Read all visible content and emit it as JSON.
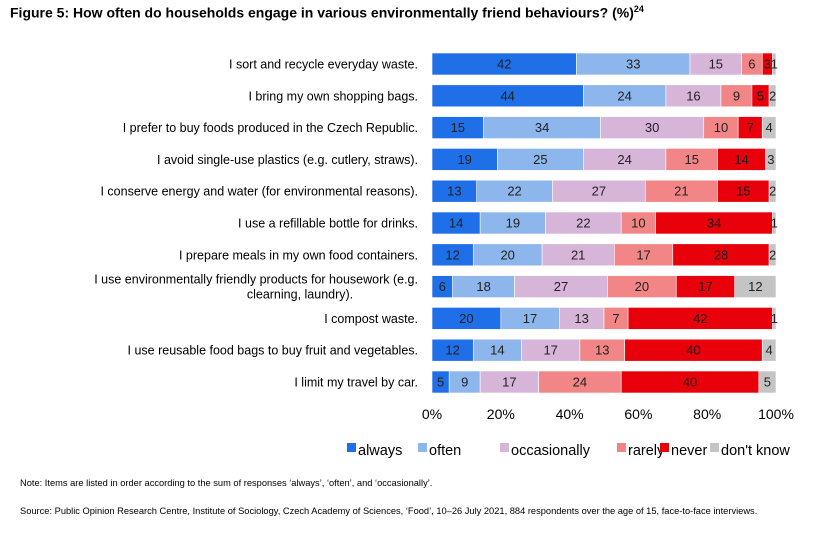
{
  "figure": {
    "title": "Figure 5: How often do households engage in various environmentally friend behaviours? (%)",
    "title_sup": "24",
    "note": "Note: Items are listed in order according to the sum of responses ‘always’, ‘often’, and ‘occasionally’.",
    "source": "Source: Public Opinion Research Centre, Institute of Sociology, Czech Academy of Sciences, ‘Food’, 10–26 July 2021, 884 respondents over the age of 15, face-to-face interviews."
  },
  "chart_data": {
    "type": "bar",
    "orientation": "horizontal",
    "stacked": "percent",
    "categories": [
      "I sort and recycle everyday waste.",
      "I bring my own shopping bags.",
      "I prefer to buy foods produced in the Czech Republic.",
      "I avoid single-use plastics (e.g. cutlery, straws).",
      "I conserve energy and water (for environmental reasons).",
      "I use a refillable bottle for drinks.",
      "I prepare meals in my own food containers.",
      "I use environmentally friendly products for housework (e.g. clearning, laundry).",
      "I compost waste.",
      "I use reusable food bags to buy fruit and vegetables.",
      "I limit my travel by car."
    ],
    "series": [
      {
        "name": "always",
        "color": "#1f6fe8",
        "values": [
          42,
          44,
          15,
          19,
          13,
          14,
          12,
          6,
          20,
          12,
          5
        ]
      },
      {
        "name": "often",
        "color": "#8db6ec",
        "values": [
          33,
          24,
          34,
          25,
          22,
          19,
          20,
          18,
          17,
          14,
          9
        ]
      },
      {
        "name": "occasionally",
        "color": "#d6b5d9",
        "values": [
          15,
          16,
          30,
          24,
          27,
          22,
          21,
          27,
          13,
          17,
          17
        ]
      },
      {
        "name": "rarely",
        "color": "#f28585",
        "values": [
          6,
          9,
          10,
          15,
          21,
          10,
          17,
          20,
          7,
          13,
          24
        ]
      },
      {
        "name": "never",
        "color": "#e8000b",
        "values": [
          3,
          5,
          7,
          14,
          15,
          34,
          28,
          17,
          42,
          40,
          40
        ]
      },
      {
        "name": "don't know",
        "color": "#c4c4c4",
        "values": [
          1,
          2,
          4,
          3,
          2,
          1,
          2,
          12,
          1,
          4,
          5
        ]
      }
    ],
    "x_ticks": [
      "0%",
      "20%",
      "40%",
      "60%",
      "80%",
      "100%"
    ],
    "xlim": [
      0,
      100
    ],
    "grid": false,
    "legend_position": "bottom"
  }
}
